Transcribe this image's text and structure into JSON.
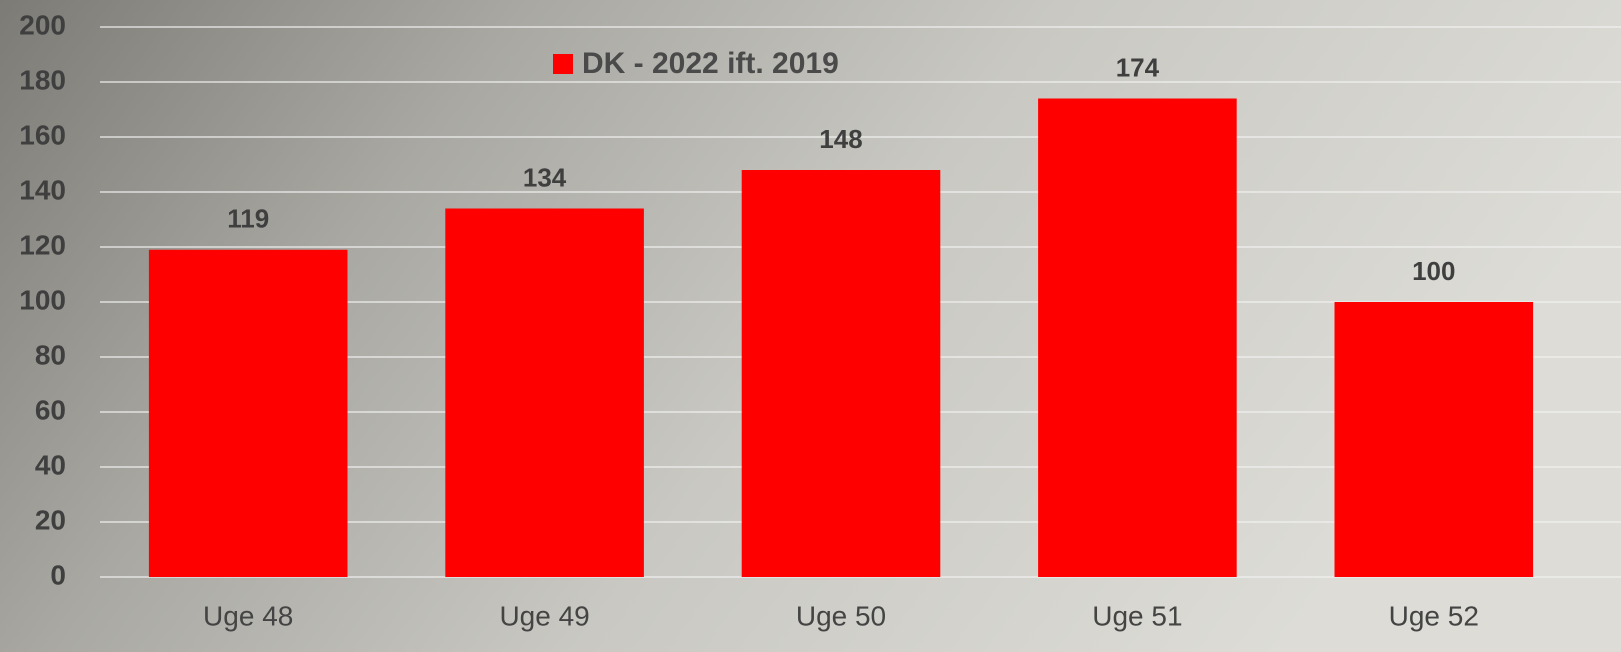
{
  "chart_data": {
    "type": "bar",
    "categories": [
      "Uge 48",
      "Uge 49",
      "Uge 50",
      "Uge 51",
      "Uge 52"
    ],
    "series": [
      {
        "name": "DK - 2022 ift. 2019",
        "color": "#ff0000",
        "values": [
          119,
          134,
          148,
          174,
          100
        ]
      }
    ],
    "ylim": [
      0,
      200
    ],
    "yticks": [
      0,
      20,
      40,
      60,
      80,
      100,
      120,
      140,
      160,
      180,
      200
    ],
    "grid": true,
    "legend": "top"
  }
}
